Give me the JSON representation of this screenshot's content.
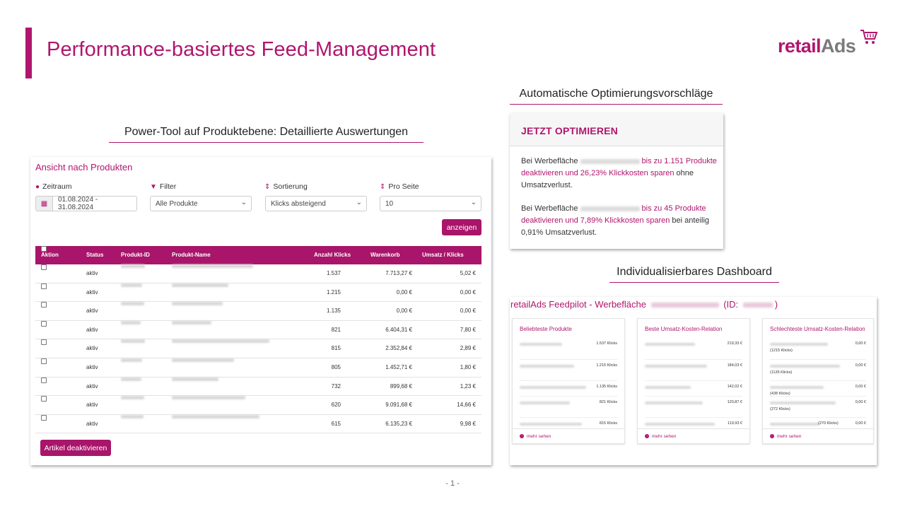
{
  "slide": {
    "title": "Performance-basiertes Feed-Management",
    "page_number": "- 1 -",
    "accent_color": "#b0166e"
  },
  "logo": {
    "part1": "retail",
    "part2": "Ads",
    "icon": "shopping-cart-icon"
  },
  "headings": {
    "product_tool": "Power-Tool auf Produktebene: Detaillierte Auswertungen",
    "optimization": "Automatische Optimierungsvorschläge",
    "dashboard": "Individualisierbares Dashboard"
  },
  "product_view": {
    "title": "Ansicht nach Produkten",
    "filters": {
      "zeitraum_label": "Zeitraum",
      "zeitraum_value": "01.08.2024 - 31.08.2024",
      "filter_label": "Filter",
      "filter_value": "Alle Produkte",
      "sort_label": "Sortierung",
      "sort_value": "Klicks absteigend",
      "per_page_label": "Pro Seite",
      "per_page_value": "10"
    },
    "show_button": "anzeigen",
    "columns": [
      "Aktion",
      "Status",
      "Produkt-ID",
      "Produkt-Name",
      "Anzahl Klicks",
      "Warenkorb",
      "Umsatz / Klicks"
    ],
    "rows": [
      {
        "status": "aktiv",
        "clicks": "1.537",
        "cart": "7.713,27 €",
        "rev": "5,02 €"
      },
      {
        "status": "aktiv",
        "clicks": "1.215",
        "cart": "0,00 €",
        "rev": "0,00 €"
      },
      {
        "status": "aktiv",
        "clicks": "1.135",
        "cart": "0,00 €",
        "rev": "0,00 €"
      },
      {
        "status": "aktiv",
        "clicks": "821",
        "cart": "6.404,31 €",
        "rev": "7,80 €"
      },
      {
        "status": "aktiv",
        "clicks": "815",
        "cart": "2.352,84 €",
        "rev": "2,89 €"
      },
      {
        "status": "aktiv",
        "clicks": "805",
        "cart": "1.452,71 €",
        "rev": "1,80 €"
      },
      {
        "status": "aktiv",
        "clicks": "732",
        "cart": "899,68 €",
        "rev": "1,23 €"
      },
      {
        "status": "aktiv",
        "clicks": "620",
        "cart": "9.091,68 €",
        "rev": "14,66 €"
      },
      {
        "status": "aktiv",
        "clicks": "615",
        "cart": "6.135,23 €",
        "rev": "9,98 €"
      }
    ],
    "deactivate_button": "Artikel deaktivieren"
  },
  "optimize": {
    "header": "JETZT OPTIMIEREN",
    "p1_a": "Bei Werbefläche",
    "p1_b": "bis zu 1.151 Produkte deaktivieren und 26,23% Klickkosten sparen",
    "p1_c": "ohne Umsatzverlust.",
    "p2_a": "Bei Werbefläche",
    "p2_b": "bis zu 45 Produkte deaktivieren und 7,89% Klickkosten sparen",
    "p2_c": "bei anteilig 0,91% Umsatzverlust."
  },
  "dashboard": {
    "title_a": "retailAds Feedpilot - Werbefläche",
    "title_b": "(ID:",
    "title_c": ")",
    "cards": [
      {
        "title": "Beliebteste Produkte",
        "values": [
          "1.537 Klicks",
          "1.215 Klicks",
          "1.135 Klicks",
          "821 Klicks",
          "815 Klicks"
        ],
        "footer": "mehr sehen"
      },
      {
        "title": "Beste Umsatz-Kosten-Relation",
        "values": [
          "219,33 €",
          "184,03 €",
          "142,02 €",
          "120,87 €",
          "119,93 €"
        ],
        "footer": "mehr sehen"
      },
      {
        "title": "Schlechteste Umsatz-Kosten-Relation",
        "values": [
          "0,00 €",
          "0,00 €",
          "0,00 €",
          "0,00 €",
          "0,00 €"
        ],
        "subs": [
          "(1215 Klicks)",
          "(1135 Klicks)",
          "(438 Klicks)",
          "(272 Klicks)",
          "(270 Klicks)"
        ],
        "footer": "mehr sehen"
      }
    ]
  }
}
